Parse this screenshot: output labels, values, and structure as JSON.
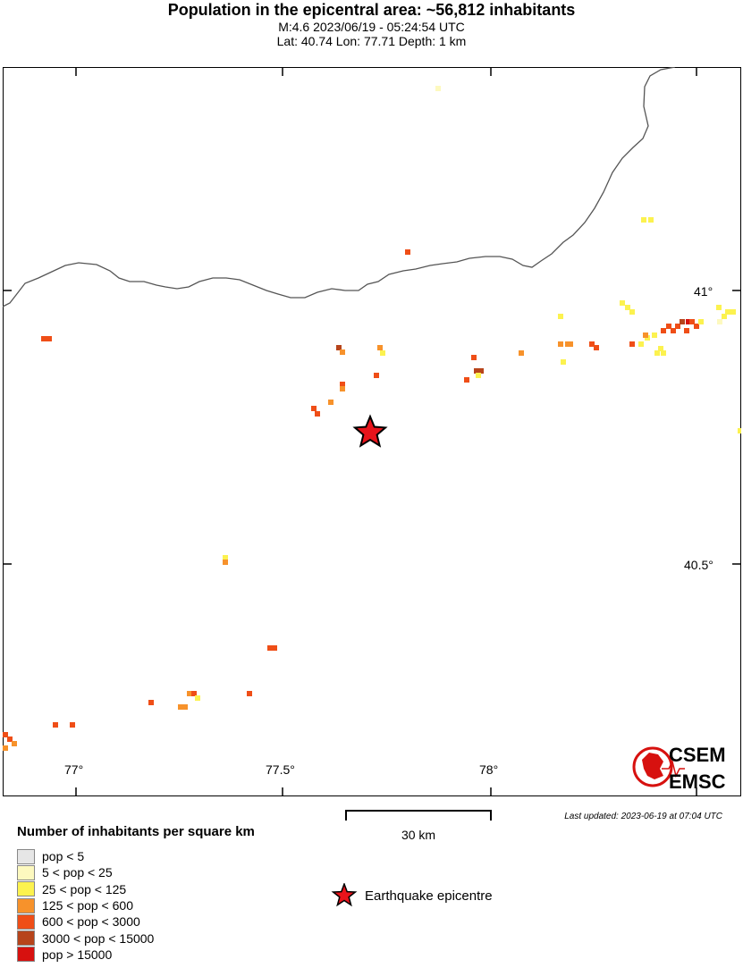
{
  "header": {
    "title": "Population in the epicentral area: ~56,812 inhabitants",
    "line1": "M:4.6 2023/06/19 - 05:24:54 UTC",
    "line2": "Lat: 40.74 Lon: 77.71 Depth: 1 km"
  },
  "map": {
    "x_ticks": [
      "77°",
      "77.5°",
      "78°"
    ],
    "y_ticks": [
      "41°",
      "40.5°"
    ],
    "epicentre": {
      "lat": 40.74,
      "lon": 77.71
    },
    "epicentre_color": "#e8141b"
  },
  "updated": "Last updated: 2023-06-19 at 07:04 UTC",
  "scale": {
    "label": "30 km"
  },
  "legend": {
    "title": "Number of inhabitants per square km",
    "items": [
      {
        "label": "pop < 5",
        "color": "#e6e6e6"
      },
      {
        "label": "5 < pop < 25",
        "color": "#fdf9bf"
      },
      {
        "label": "25 < pop < 125",
        "color": "#fcf24f"
      },
      {
        "label": "125 < pop < 600",
        "color": "#f7922b"
      },
      {
        "label": "600 < pop < 3000",
        "color": "#ef4e17"
      },
      {
        "label": "3000 < pop < 15000",
        "color": "#b7441b"
      },
      {
        "label": "pop > 15000",
        "color": "#d7110f"
      }
    ],
    "epicentre_label": "Earthquake epicentre"
  },
  "logo": {
    "line1": "CSEM",
    "line2": "EMSC"
  }
}
